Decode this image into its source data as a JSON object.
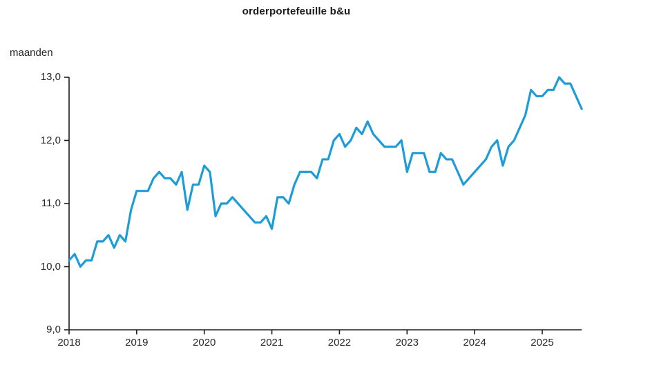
{
  "chart_data": {
    "type": "line",
    "title": "orderportefeuille b&u",
    "ylabel": "maanden",
    "x_start_month": "2018-01",
    "x_end_month": "2025-08",
    "x_tick_labels": [
      "2018",
      "2019",
      "2020",
      "2021",
      "2022",
      "2023",
      "2024",
      "2025"
    ],
    "y_tick_labels": [
      "9,0",
      "10,0",
      "11,0",
      "12,0",
      "13,0"
    ],
    "y_tick_values": [
      9,
      10,
      11,
      12,
      13
    ],
    "ylim": [
      9.0,
      13.0
    ],
    "grid": "off",
    "legend": "none",
    "line_color": "#1e9cd8",
    "axis_color": "#1a1a1a",
    "text_color": "#262626",
    "series": [
      {
        "name": "orderportefeuille b&u (maanden)",
        "years": [
          {
            "year": 2018,
            "values": [
              10.1,
              10.2,
              10.0,
              10.1,
              10.1,
              10.4,
              10.4,
              10.5,
              10.3,
              10.5,
              10.4,
              10.9
            ]
          },
          {
            "year": 2019,
            "values": [
              11.2,
              11.2,
              11.2,
              11.4,
              11.5,
              11.4,
              11.4,
              11.3,
              11.5,
              10.9,
              11.3,
              11.3
            ]
          },
          {
            "year": 2020,
            "values": [
              11.6,
              11.5,
              10.8,
              11.0,
              11.0,
              11.1,
              11.0,
              10.9,
              10.8,
              10.7,
              10.7,
              10.8
            ]
          },
          {
            "year": 2021,
            "values": [
              10.6,
              11.1,
              11.1,
              11.0,
              11.3,
              11.5,
              11.5,
              11.5,
              11.4,
              11.7,
              11.7,
              12.0
            ]
          },
          {
            "year": 2022,
            "values": [
              12.1,
              11.9,
              12.0,
              12.2,
              12.1,
              12.3,
              12.1,
              12.0,
              11.9,
              11.9,
              11.9,
              12.0
            ]
          },
          {
            "year": 2023,
            "values": [
              11.5,
              11.8,
              11.8,
              11.8,
              11.5,
              11.5,
              11.8,
              11.7,
              11.7,
              11.5,
              11.3,
              11.4
            ]
          },
          {
            "year": 2024,
            "values": [
              11.5,
              11.6,
              11.7,
              11.9,
              12.0,
              11.6,
              11.9,
              12.0,
              12.2,
              12.4,
              12.8,
              12.7
            ]
          },
          {
            "year": 2025,
            "values": [
              12.7,
              12.8,
              12.8,
              13.0,
              12.9,
              12.9,
              12.7,
              12.5
            ]
          }
        ]
      }
    ]
  }
}
